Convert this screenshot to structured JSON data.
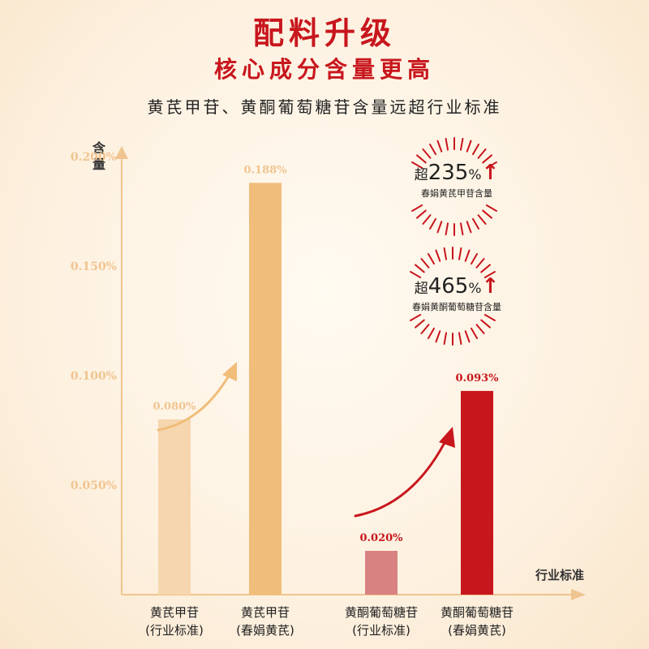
{
  "title": "配料升级",
  "subtitle_main": "核心成分含量更高",
  "description": "黄芪甲苷、黄酮葡萄糖苷含量远超行业标准",
  "colors": {
    "accent_red": "#c8161d",
    "bar_light": "#f6d6ae",
    "bar_orange": "#f0bd7a",
    "bar_pink": "#d98282",
    "bar_red": "#c8161d",
    "axis": "#f0c490"
  },
  "badges": [
    {
      "prefix": "超",
      "value": "235",
      "unit": "%",
      "arrow": "↑",
      "label": "春娟黄芪甲苷含量"
    },
    {
      "prefix": "超",
      "value": "465",
      "unit": "%",
      "arrow": "↑",
      "label": "春娟黄酮葡萄糖苷含量"
    }
  ],
  "chart_data": {
    "type": "bar",
    "ylabel": "含量",
    "xlabel_tag": "行业标准",
    "yticks": [
      0.05,
      0.1,
      0.15,
      0.2
    ],
    "ytick_labels": [
      "0.050%",
      "0.100%",
      "0.150%",
      "0.200%"
    ],
    "ylim": [
      0,
      0.2
    ],
    "grid": false,
    "bars": [
      {
        "name": "黄芪甲苷",
        "group": "(行业标准)",
        "value": 0.08,
        "label": "0.080%",
        "color": "#f6d6ae",
        "label_color": "#f0c490"
      },
      {
        "name": "黄芪甲苷",
        "group": "(春娟黄芪)",
        "value": 0.188,
        "label": "0.188%",
        "color": "#f0bd7a",
        "label_color": "#f0c490"
      },
      {
        "name": "黄酮葡萄糖苷",
        "group": "(行业标准)",
        "value": 0.02,
        "label": "0.020%",
        "color": "#d98282",
        "label_color": "#c8161d"
      },
      {
        "name": "黄酮葡萄糖苷",
        "group": "(春娟黄芪)",
        "value": 0.093,
        "label": "0.093%",
        "color": "#c8161d",
        "label_color": "#c8161d"
      }
    ]
  }
}
